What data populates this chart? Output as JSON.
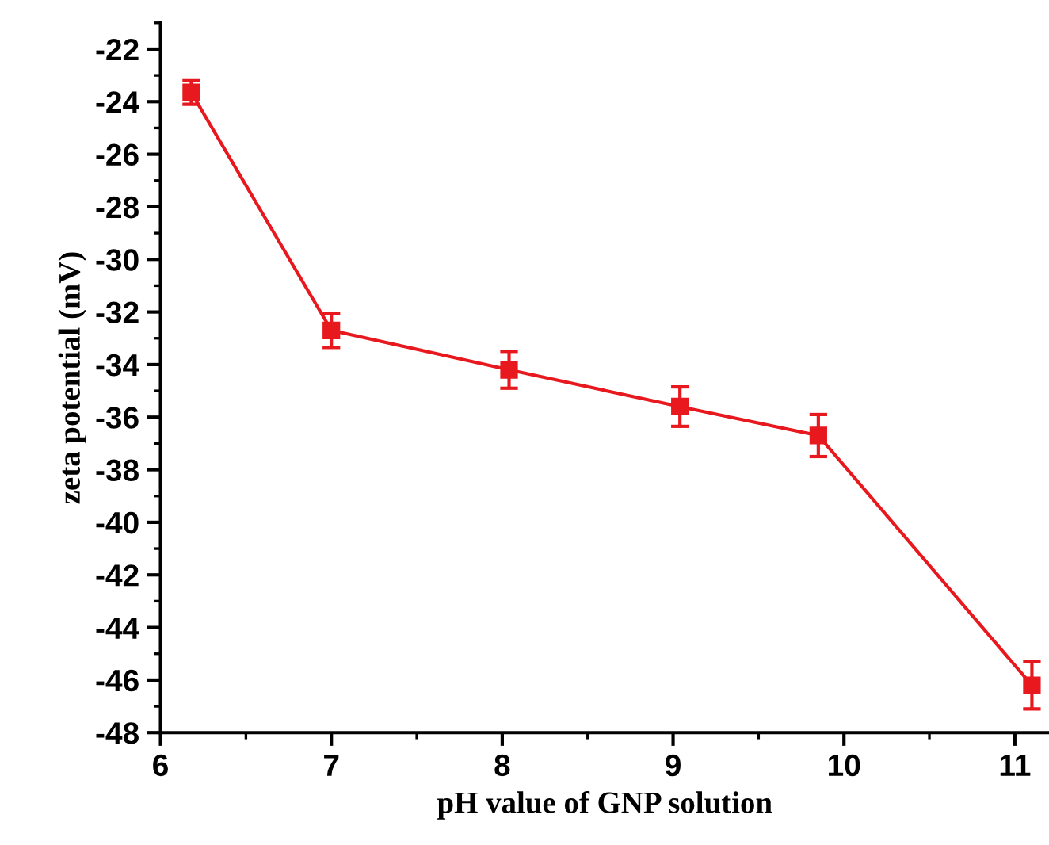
{
  "chart_data": {
    "type": "line",
    "xlabel": "pH value of GNP solution",
    "ylabel": "zeta potential (mV)",
    "x": [
      6.18,
      7.0,
      8.04,
      9.04,
      9.85,
      11.1
    ],
    "series": [
      {
        "color": "#e8191e",
        "values": [
          -23.65,
          -32.7,
          -34.2,
          -35.6,
          -36.7,
          -46.2
        ],
        "errors": [
          0.45,
          0.65,
          0.7,
          0.75,
          0.8,
          0.9
        ]
      }
    ],
    "xlim": [
      6,
      11.2
    ],
    "xticks": [
      6,
      7,
      8,
      9,
      10,
      11
    ],
    "ylim": [
      -48,
      -21
    ],
    "yticks": [
      -48,
      -46,
      -44,
      -42,
      -40,
      -38,
      -36,
      -34,
      -32,
      -30,
      -28,
      -26,
      -24,
      -22
    ],
    "marker": "square",
    "line_style": "solid",
    "grid": false,
    "legend": false
  }
}
